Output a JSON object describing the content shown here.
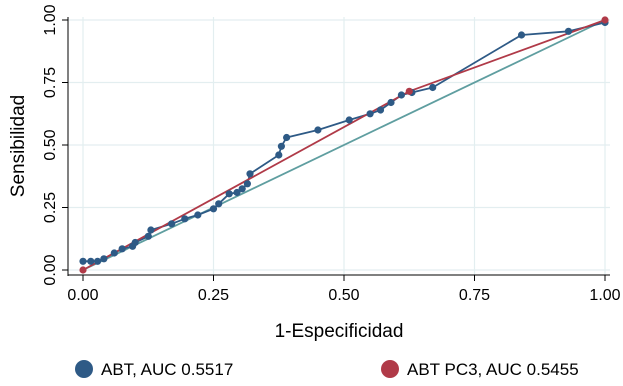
{
  "chart_data": {
    "type": "line",
    "title": "",
    "xlabel": "1-Especificidad",
    "ylabel": "Sensibilidad",
    "xlim": [
      0,
      1
    ],
    "ylim": [
      0,
      1
    ],
    "x_ticks": [
      "0.00",
      "0.25",
      "0.50",
      "0.75",
      "1.00"
    ],
    "y_ticks": [
      "0.00",
      "0.25",
      "0.50",
      "0.75",
      "1.00"
    ],
    "grid": true,
    "legend_position": "bottom",
    "colors": {
      "abt": "#2e5a86",
      "abt_pc3": "#b03a48",
      "reference": "#5f9ea0",
      "grid": "#e3eef0"
    },
    "series": [
      {
        "name": "ABT, AUC 0.5517",
        "color": "#2e5a86",
        "points": [
          [
            0.0,
            0.035
          ],
          [
            0.015,
            0.035
          ],
          [
            0.028,
            0.035
          ],
          [
            0.04,
            0.045
          ],
          [
            0.06,
            0.068
          ],
          [
            0.075,
            0.085
          ],
          [
            0.095,
            0.095
          ],
          [
            0.1,
            0.11
          ],
          [
            0.125,
            0.135
          ],
          [
            0.13,
            0.16
          ],
          [
            0.17,
            0.185
          ],
          [
            0.195,
            0.205
          ],
          [
            0.22,
            0.22
          ],
          [
            0.25,
            0.245
          ],
          [
            0.26,
            0.265
          ],
          [
            0.28,
            0.305
          ],
          [
            0.295,
            0.31
          ],
          [
            0.305,
            0.325
          ],
          [
            0.315,
            0.345
          ],
          [
            0.32,
            0.385
          ],
          [
            0.375,
            0.46
          ],
          [
            0.38,
            0.495
          ],
          [
            0.39,
            0.53
          ],
          [
            0.45,
            0.56
          ],
          [
            0.51,
            0.6
          ],
          [
            0.55,
            0.625
          ],
          [
            0.57,
            0.64
          ],
          [
            0.59,
            0.67
          ],
          [
            0.61,
            0.7
          ],
          [
            0.63,
            0.71
          ],
          [
            0.67,
            0.73
          ],
          [
            0.84,
            0.94
          ],
          [
            0.93,
            0.955
          ],
          [
            1.0,
            0.99
          ]
        ]
      },
      {
        "name": "ABT PC3, AUC 0.5455",
        "color": "#b03a48",
        "points": [
          [
            0.0,
            0.0
          ],
          [
            0.625,
            0.715
          ],
          [
            1.0,
            1.0
          ]
        ]
      }
    ]
  }
}
